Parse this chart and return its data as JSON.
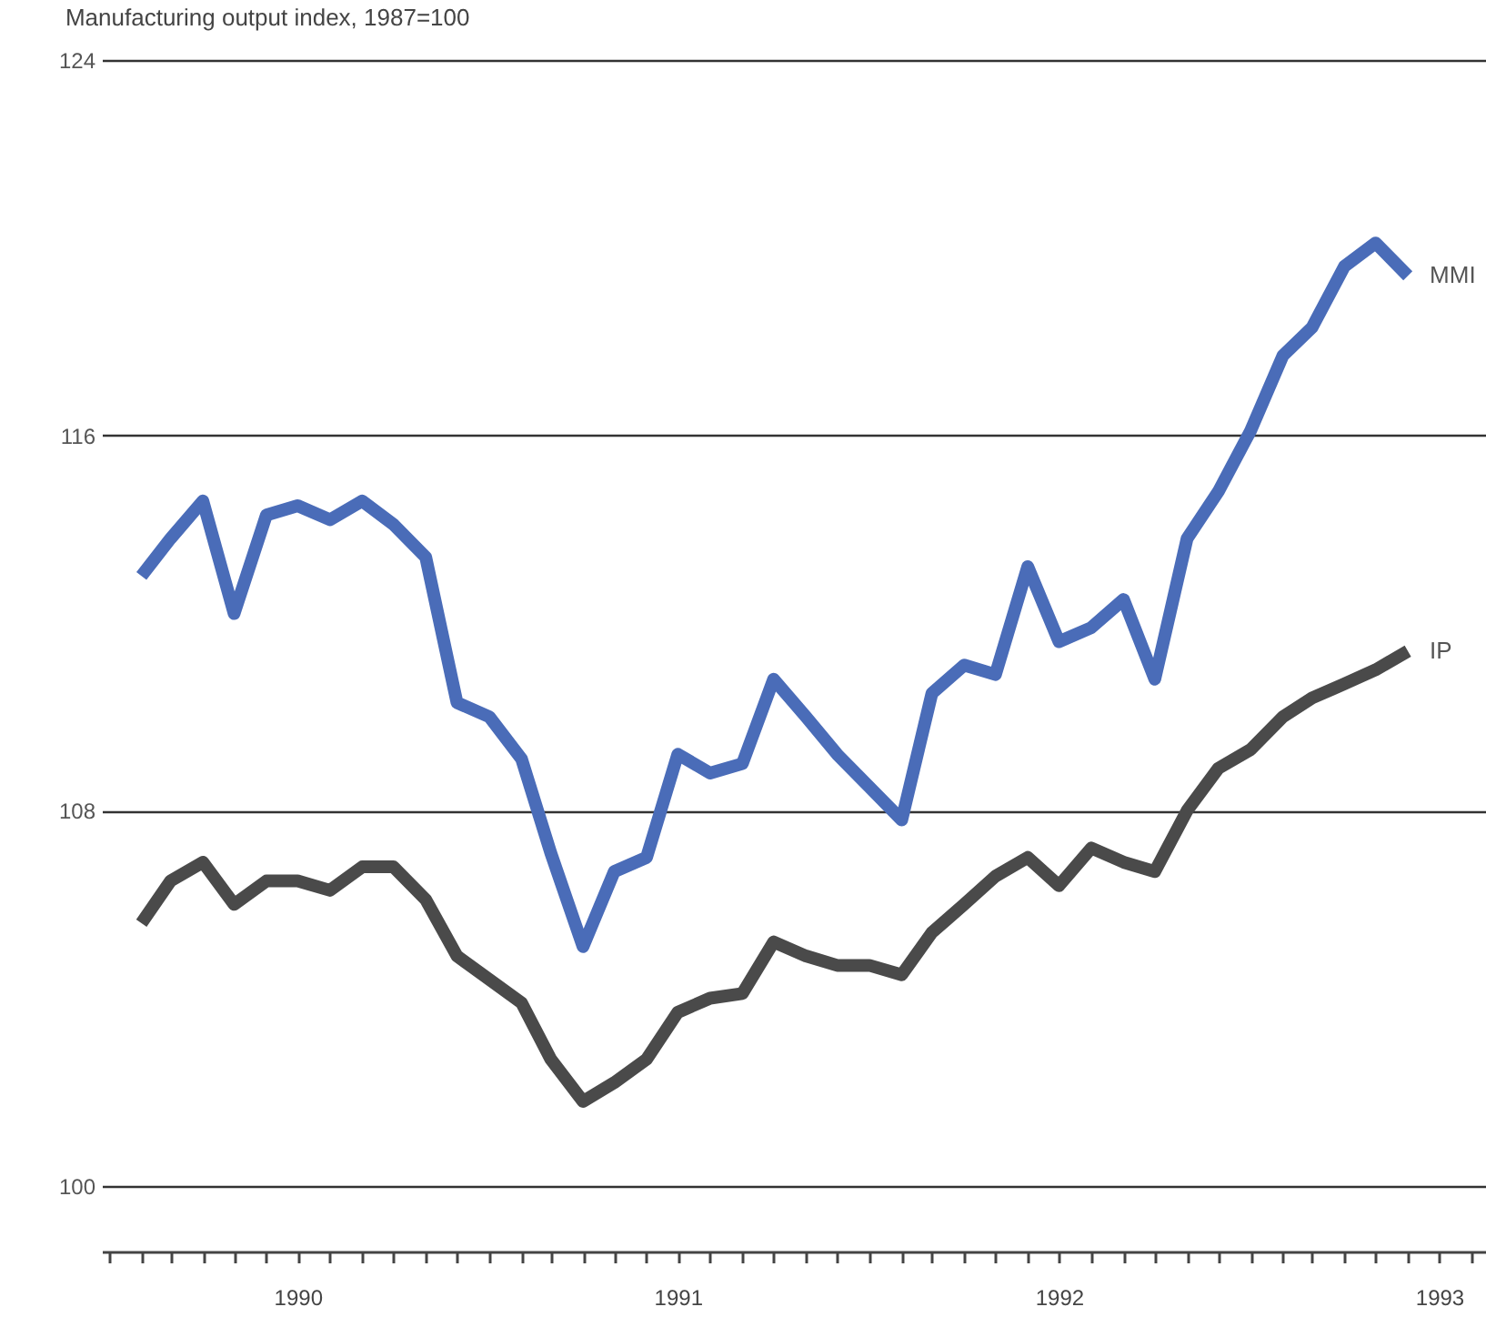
{
  "chart_data": {
    "type": "line",
    "title": "Manufacturing output index, 1987=100",
    "x": [
      "1990-02",
      "1990-03",
      "1990-04",
      "1990-05",
      "1990-06",
      "1990-07",
      "1990-08",
      "1990-09",
      "1990-10",
      "1990-11",
      "1990-12",
      "1991-01",
      "1991-02",
      "1991-03",
      "1991-04",
      "1991-05",
      "1991-06",
      "1991-07",
      "1991-08",
      "1991-09",
      "1991-10",
      "1991-11",
      "1991-12",
      "1992-01",
      "1992-02",
      "1992-03",
      "1992-04",
      "1992-05",
      "1992-06",
      "1992-07",
      "1992-08",
      "1992-09",
      "1992-10",
      "1992-11",
      "1992-12",
      "1993-01",
      "1993-02",
      "1993-03",
      "1993-04",
      "1993-05",
      "1993-06"
    ],
    "series": [
      {
        "name": "MMI",
        "color": "#4a6cb8",
        "values": [
          113.0,
          113.8,
          114.6,
          112.2,
          114.3,
          114.5,
          114.2,
          114.6,
          114.1,
          113.4,
          110.3,
          110.0,
          109.1,
          107.1,
          105.1,
          106.7,
          107.0,
          109.2,
          108.8,
          109.0,
          110.8,
          110.0,
          109.2,
          108.5,
          107.8,
          110.5,
          111.1,
          110.9,
          113.2,
          111.6,
          111.9,
          112.5,
          110.8,
          113.8,
          114.8,
          116.1,
          117.7,
          118.3,
          119.6,
          120.1,
          119.4
        ]
      },
      {
        "name": "IP",
        "color": "#4a4a4a",
        "values": [
          105.6,
          106.5,
          106.9,
          106.0,
          106.5,
          106.5,
          106.3,
          106.8,
          106.8,
          106.1,
          104.9,
          104.4,
          103.9,
          102.7,
          101.8,
          102.2,
          102.7,
          103.7,
          104.0,
          104.1,
          105.2,
          104.9,
          104.7,
          104.7,
          104.5,
          105.4,
          106.0,
          106.6,
          107.0,
          106.4,
          107.2,
          106.9,
          106.7,
          108.0,
          108.9,
          109.3,
          110.0,
          110.4,
          110.7,
          111.0,
          111.4
        ]
      }
    ],
    "xlim": [
      "1989-12-25",
      "1993-08-15"
    ],
    "xticks": [
      {
        "value": "1990-01",
        "label": null
      },
      {
        "value": "1990-02",
        "label": null
      },
      {
        "value": "1990-03",
        "label": null
      },
      {
        "value": "1990-04",
        "label": null
      },
      {
        "value": "1990-05",
        "label": null
      },
      {
        "value": "1990-06",
        "label": null
      },
      {
        "value": "1990-07",
        "label": "1990"
      },
      {
        "value": "1990-08",
        "label": null
      },
      {
        "value": "1990-09",
        "label": null
      },
      {
        "value": "1990-10",
        "label": null
      },
      {
        "value": "1990-11",
        "label": null
      },
      {
        "value": "1990-12",
        "label": null
      },
      {
        "value": "1991-01",
        "label": null
      },
      {
        "value": "1991-02",
        "label": null
      },
      {
        "value": "1991-03",
        "label": null
      },
      {
        "value": "1991-04",
        "label": null
      },
      {
        "value": "1991-05",
        "label": null
      },
      {
        "value": "1991-06",
        "label": null
      },
      {
        "value": "1991-07",
        "label": "1991"
      },
      {
        "value": "1991-08",
        "label": null
      },
      {
        "value": "1991-09",
        "label": null
      },
      {
        "value": "1991-10",
        "label": null
      },
      {
        "value": "1991-11",
        "label": null
      },
      {
        "value": "1991-12",
        "label": null
      },
      {
        "value": "1992-01",
        "label": null
      },
      {
        "value": "1992-02",
        "label": null
      },
      {
        "value": "1992-03",
        "label": null
      },
      {
        "value": "1992-04",
        "label": null
      },
      {
        "value": "1992-05",
        "label": null
      },
      {
        "value": "1992-06",
        "label": null
      },
      {
        "value": "1992-07",
        "label": "1992"
      },
      {
        "value": "1992-08",
        "label": null
      },
      {
        "value": "1992-09",
        "label": null
      },
      {
        "value": "1992-10",
        "label": null
      },
      {
        "value": "1992-11",
        "label": null
      },
      {
        "value": "1992-12",
        "label": null
      },
      {
        "value": "1993-01",
        "label": null
      },
      {
        "value": "1993-02",
        "label": null
      },
      {
        "value": "1993-03",
        "label": null
      },
      {
        "value": "1993-04",
        "label": null
      },
      {
        "value": "1993-05",
        "label": null
      },
      {
        "value": "1993-06",
        "label": null
      },
      {
        "value": "1993-07",
        "label": "1993"
      },
      {
        "value": "1993-08",
        "label": null
      }
    ],
    "ylim": [
      98.6,
      124
    ],
    "yticks": [
      100,
      108,
      116,
      124
    ],
    "grid": "y",
    "line_style": "solid"
  }
}
